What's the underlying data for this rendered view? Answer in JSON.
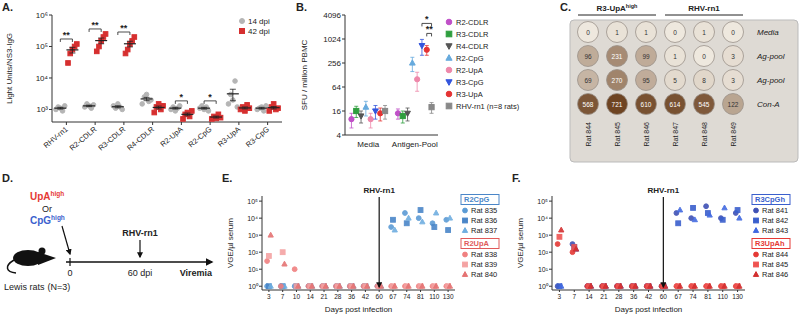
{
  "chart_data": [
    {
      "type": "scatter",
      "title": "A.",
      "y_label": "Light Units/NS3-IgG",
      "categories": [
        "RHV-rn1",
        "R2-CDLR",
        "R3-CDLR",
        "R4-CDLR",
        "R2-UpA",
        "R2-CpG",
        "R3-UpA",
        "R3-CpG"
      ],
      "log": "y",
      "ylim": [
        400,
        1000000
      ],
      "yticks": [
        {
          "value": 1000,
          "label": "10³"
        },
        {
          "value": 10000,
          "label": "10⁴"
        },
        {
          "value": 100000,
          "label": "10⁵"
        },
        {
          "value": 1000000,
          "label": "10⁶"
        }
      ],
      "legend": "top-right",
      "series": [
        {
          "name": "14 dpi",
          "color": "#b5b5b5",
          "marker": "circle",
          "values": [
            [
              1000,
              1200,
              1100,
              900,
              1300
            ],
            [
              1200,
              1500,
              1300,
              1100,
              1400
            ],
            [
              1300,
              1100,
              1500,
              1200,
              1000
            ],
            [
              1500,
              2500,
              3000,
              1800,
              2000
            ],
            [
              1000,
              1200,
              900,
              1100,
              1300
            ],
            [
              1100,
              1300,
              1000,
              1200,
              900
            ],
            [
              1500,
              3000,
              2000,
              8000,
              1200
            ],
            [
              1000,
              1100,
              1200,
              900,
              1300
            ]
          ],
          "means": [
            1100,
            1300,
            1220,
            2160,
            1100,
            1100,
            3140,
            1100
          ],
          "errors": [
            70,
            70,
            90,
            260,
            70,
            70,
            1250,
            70
          ]
        },
        {
          "name": "42 dpi",
          "color": "#d62f2f",
          "marker": "square",
          "values": [
            [
              30000,
              60000,
              80000,
              100000,
              120000
            ],
            [
              70000,
              100000,
              150000,
              200000,
              250000
            ],
            [
              60000,
              80000,
              120000,
              150000,
              200000
            ],
            [
              800,
              1200,
              1500,
              1000,
              1300
            ],
            [
              500,
              700,
              800,
              600,
              900
            ],
            [
              500,
              600,
              520,
              700,
              550
            ],
            [
              1000,
              1200,
              900,
              1400,
              1100
            ],
            [
              900,
              1200,
              1500,
              1000,
              1100
            ]
          ],
          "means": [
            78000,
            154000,
            122000,
            1160,
            700,
            575,
            1120,
            1140
          ],
          "errors": [
            16000,
            32000,
            25000,
            120,
            70,
            40,
            80,
            100
          ]
        }
      ],
      "annotations": [
        {
          "text": "**",
          "category": "RHV-rn1"
        },
        {
          "text": "**",
          "category": "R2-CDLR"
        },
        {
          "text": "**",
          "category": "R3-CDLR"
        },
        {
          "text": "*",
          "category": "R2-UpA"
        },
        {
          "text": "*",
          "category": "R2-CpG"
        }
      ]
    },
    {
      "type": "scatter",
      "title": "B.",
      "y_label": "SFU / million PBMC",
      "categories": [
        "Media",
        "Antigen-Pool"
      ],
      "log": "y",
      "ylim": [
        4,
        4096
      ],
      "yticks": [
        4,
        16,
        64,
        256,
        1024,
        4096
      ],
      "legend": "right",
      "series": [
        {
          "name": "R2-CDLR",
          "color": "#c050c8",
          "marker": "circle",
          "values": [
            10,
            14
          ],
          "errors": [
            4,
            4
          ]
        },
        {
          "name": "R3-CDLR",
          "color": "#2e9e3e",
          "marker": "square",
          "values": [
            16,
            12
          ],
          "errors": [
            5,
            4
          ]
        },
        {
          "name": "R4-CDLR",
          "color": "#555555",
          "marker": "triangle-down",
          "values": [
            12,
            14
          ],
          "errors": [
            4,
            5
          ]
        },
        {
          "name": "R2-CpG",
          "color": "#66aadd",
          "marker": "triangle",
          "values": [
            20,
            256
          ],
          "errors": [
            8,
            100
          ]
        },
        {
          "name": "R2-UpA",
          "color": "#ee88aa",
          "marker": "circle",
          "values": [
            10,
            100
          ],
          "errors": [
            4,
            50
          ]
        },
        {
          "name": "R3-CpG",
          "color": "#3355dd",
          "marker": "triangle-down",
          "values": [
            16,
            700
          ],
          "errors": [
            6,
            300
          ]
        },
        {
          "name": "R3-UpA",
          "color": "#e53333",
          "marker": "circle",
          "values": [
            14,
            550
          ],
          "errors": [
            5,
            150
          ]
        },
        {
          "name": "RHV-rn1 (n=8 rats)",
          "color": "#888888",
          "marker": "square",
          "values": [
            16,
            20
          ],
          "errors": [
            6,
            6
          ]
        }
      ],
      "annotations": [
        {
          "text": "**",
          "category": "Antigen-Pool",
          "from": "R3-UpA",
          "to": "RHV-rn1 (n=8 rats)"
        },
        {
          "text": "*",
          "category": "Antigen-Pool",
          "from": "R3-CpG",
          "to": "RHV-rn1 (n=8 rats)"
        }
      ]
    },
    {
      "type": "scatter",
      "title": "E.",
      "y_label": "VGE/µl serum",
      "x_label": "Days post infection",
      "categories": [
        "3",
        "7",
        "10",
        "14",
        "21",
        "28",
        "36",
        "42",
        "60",
        "67",
        "74",
        "81",
        "110",
        "130"
      ],
      "log": "y",
      "ylim": [
        0.6,
        200000
      ],
      "yticks": [
        {
          "value": 1,
          "label": "10⁰"
        },
        {
          "value": 10,
          "label": "10¹"
        },
        {
          "value": 100,
          "label": "10²"
        },
        {
          "value": 1000,
          "label": "10³"
        },
        {
          "value": 10000,
          "label": "10⁴"
        },
        {
          "value": 100000,
          "label": "10⁵"
        }
      ],
      "legend": "right",
      "legend_groups": [
        {
          "name": "R2CpG",
          "color": "#4a86c8"
        },
        {
          "name": "R2UpA",
          "color": "#e05a5a"
        }
      ],
      "series": [
        {
          "name": "Rat 835",
          "group": "R2CpG",
          "color": "#5b9bd5",
          "marker": "circle",
          "values": [
            1,
            1,
            1,
            1,
            1,
            1,
            1,
            1,
            1,
            3000,
            20000,
            10000,
            5000,
            8000
          ]
        },
        {
          "name": "Rat 836",
          "group": "R2CpG",
          "color": "#4a86c8",
          "marker": "square",
          "values": [
            1,
            1,
            1,
            1,
            1,
            1,
            1,
            1,
            1,
            8000,
            5000,
            30000,
            3000,
            2000
          ]
        },
        {
          "name": "Rat 837",
          "group": "R2CpG",
          "color": "#6faee0",
          "marker": "triangle",
          "values": [
            1,
            1,
            1,
            1,
            1,
            1,
            1,
            1,
            1,
            2000,
            10000,
            6000,
            20000,
            10000
          ]
        },
        {
          "name": "Rat 838",
          "group": "R2UpA",
          "color": "#f08080",
          "marker": "circle",
          "values": [
            30,
            1,
            10,
            1,
            1,
            1,
            1,
            1,
            1,
            1,
            1,
            1,
            1,
            1
          ]
        },
        {
          "name": "Rat 839",
          "group": "R2UpA",
          "color": "#f4a3a3",
          "marker": "square",
          "values": [
            60,
            100,
            1,
            1,
            1,
            1,
            1,
            1,
            1,
            1,
            1,
            1,
            1,
            1
          ]
        },
        {
          "name": "Rat 840",
          "group": "R2UpA",
          "color": "#e57373",
          "marker": "triangle",
          "values": [
            1000,
            20,
            1,
            1,
            1,
            1,
            1,
            1,
            1,
            1,
            1,
            1,
            1,
            1
          ]
        }
      ],
      "annotations": [
        {
          "text": "RHV-rn1",
          "category": "60"
        }
      ]
    },
    {
      "type": "scatter",
      "title": "F.",
      "y_label": "VGE/µl serum",
      "x_label": "Days post infection",
      "categories": [
        "3",
        "7",
        "14",
        "21",
        "28",
        "36",
        "42",
        "60",
        "67",
        "74",
        "81",
        "110",
        "130"
      ],
      "log": "y",
      "ylim": [
        0.6,
        200000
      ],
      "yticks": [
        {
          "value": 1,
          "label": "10⁰"
        },
        {
          "value": 10,
          "label": "10¹"
        },
        {
          "value": 100,
          "label": "10²"
        },
        {
          "value": 1000,
          "label": "10³"
        },
        {
          "value": 10000,
          "label": "10⁴"
        },
        {
          "value": 100000,
          "label": "10⁵"
        }
      ],
      "legend": "right",
      "legend_groups": [
        {
          "name": "R3CpGh",
          "color": "#3a5fcd"
        },
        {
          "name": "R3UpAh",
          "color": "#e53935"
        }
      ],
      "series": [
        {
          "name": "Rat 841",
          "group": "R3CpGh",
          "color": "#3f51b5",
          "marker": "circle",
          "values": [
            1,
            300,
            1,
            1,
            1,
            1,
            1,
            1,
            20000,
            10000,
            50000,
            10000,
            20000
          ]
        },
        {
          "name": "Rat 842",
          "group": "R3CpGh",
          "color": "#3a5fcd",
          "marker": "square",
          "values": [
            1,
            200,
            1,
            1,
            1,
            1,
            1,
            1,
            5000,
            40000,
            20000,
            8000,
            30000
          ]
        },
        {
          "name": "Rat 843",
          "group": "R3CpGh",
          "color": "#4169e1",
          "marker": "triangle",
          "values": [
            1,
            150,
            1,
            1,
            1,
            1,
            1,
            1,
            30000,
            8000,
            15000,
            40000,
            10000
          ]
        },
        {
          "name": "Rat 844",
          "group": "R3UpAh",
          "color": "#e53935",
          "marker": "circle",
          "values": [
            300,
            100,
            1,
            1,
            1,
            1,
            1,
            1,
            1,
            1,
            1,
            1,
            1
          ]
        },
        {
          "name": "Rat 845",
          "group": "R3UpAh",
          "color": "#ef5350",
          "marker": "square",
          "values": [
            800,
            200,
            1,
            1,
            1,
            1,
            1,
            1,
            1,
            1,
            1,
            1,
            1
          ]
        },
        {
          "name": "Rat 846",
          "group": "R3UpAh",
          "color": "#d32f2f",
          "marker": "triangle",
          "values": [
            2000,
            150,
            1,
            1,
            1,
            1,
            1,
            1,
            1,
            1,
            1,
            1,
            1
          ]
        }
      ],
      "annotations": [
        {
          "text": "RHV-rn1",
          "category": "60"
        }
      ]
    }
  ],
  "plate": {
    "title": "C.",
    "groups": [
      {
        "label": "R3-UpA",
        "sup": "high",
        "rats": [
          "Rat 844",
          "Rat 845",
          "Rat 846"
        ]
      },
      {
        "label": "RHV-rn1",
        "rats": [
          "Rat 847",
          "Rat 848",
          "Rat 849"
        ]
      }
    ],
    "rows": [
      "Media",
      "Ag-pool",
      "Ag-pool",
      "Con-A"
    ],
    "counts": [
      [
        0,
        1,
        1,
        0,
        1,
        0
      ],
      [
        96,
        231,
        99,
        1,
        0,
        3
      ],
      [
        69,
        270,
        95,
        5,
        8,
        3
      ],
      [
        568,
        721,
        610,
        614,
        545,
        122
      ]
    ]
  },
  "schematic": {
    "title": "D.",
    "arms": [
      {
        "label": "UpA",
        "sup": "high",
        "color": "#e53935"
      },
      {
        "label": "CpG",
        "sup": "high",
        "color": "#3a5fcd"
      }
    ],
    "or": "Or",
    "subject": "Lewis rats",
    "n": "(N=3)",
    "start": 0,
    "challenge": "RHV-rn1",
    "challenge_time": "60 dpi",
    "readout": "Viremia"
  }
}
